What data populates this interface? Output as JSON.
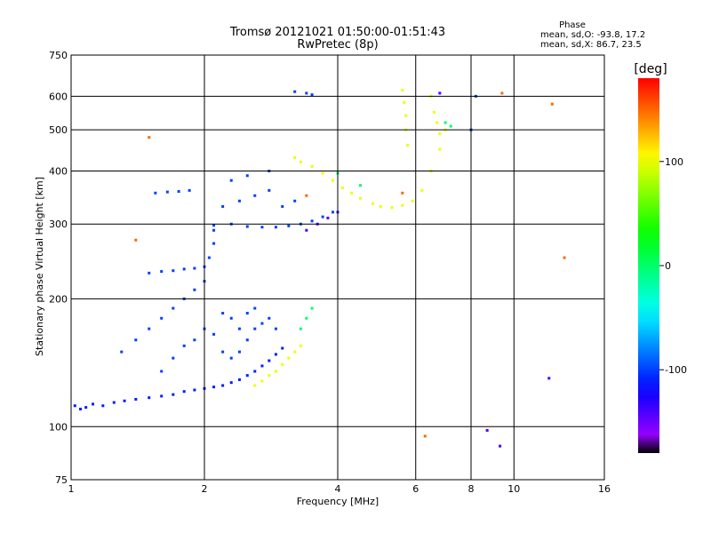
{
  "chart_data": {
    "type": "scatter",
    "title": "Tromsø 20121021 01:50:00-01:51:43",
    "subtitle": "RwPretec (8p)",
    "xlabel": "Frequency [MHz]",
    "ylabel": "Stationary phase Virtual Height [km]",
    "x_scale": "log",
    "y_scale": "log",
    "xlim": [
      1,
      16
    ],
    "ylim": [
      75,
      750
    ],
    "x_ticks": [
      1,
      2,
      4,
      6,
      8,
      10,
      16
    ],
    "y_ticks": [
      75,
      100,
      200,
      300,
      400,
      500,
      600,
      750
    ],
    "grid": true,
    "phase_box": {
      "heading": "Phase",
      "line_o": "mean, sd,O: -93.8, 17.2",
      "line_x": "mean, sd,X:  86.7, 23.5"
    },
    "colorbar": {
      "label": "[deg]",
      "min": -180,
      "max": 180,
      "ticks": [
        100,
        0,
        -100
      ]
    },
    "series": [
      {
        "points": [
          [
            1.02,
            112,
            -110
          ],
          [
            1.05,
            110,
            -110
          ],
          [
            1.08,
            111,
            -110
          ],
          [
            1.12,
            113,
            -110
          ],
          [
            1.18,
            112,
            -110
          ],
          [
            1.25,
            114,
            -110
          ],
          [
            1.32,
            115,
            -110
          ],
          [
            1.4,
            116,
            -110
          ],
          [
            1.5,
            117,
            -110
          ],
          [
            1.6,
            118,
            -110
          ],
          [
            1.7,
            119,
            -110
          ],
          [
            1.8,
            121,
            -110
          ],
          [
            1.9,
            122,
            -110
          ],
          [
            2.0,
            123,
            -110
          ],
          [
            2.1,
            124,
            -110
          ],
          [
            2.2,
            125,
            -110
          ],
          [
            2.3,
            127,
            -110
          ],
          [
            2.4,
            129,
            -110
          ],
          [
            2.5,
            132,
            -110
          ],
          [
            2.6,
            135,
            -110
          ],
          [
            2.7,
            139,
            -110
          ],
          [
            2.8,
            143,
            -110
          ],
          [
            2.9,
            148,
            -110
          ],
          [
            3.0,
            153,
            -110
          ],
          [
            1.5,
            230,
            -100
          ],
          [
            1.6,
            232,
            -100
          ],
          [
            1.7,
            233,
            -100
          ],
          [
            1.8,
            235,
            -100
          ],
          [
            1.9,
            236,
            -100
          ],
          [
            2.0,
            238,
            -100
          ],
          [
            1.55,
            355,
            -100
          ],
          [
            1.65,
            357,
            -100
          ],
          [
            1.75,
            358,
            -100
          ],
          [
            1.85,
            360,
            -100
          ],
          [
            1.3,
            150,
            -100
          ],
          [
            1.4,
            160,
            -100
          ],
          [
            1.5,
            170,
            -100
          ],
          [
            1.6,
            180,
            -100
          ],
          [
            1.7,
            190,
            -100
          ],
          [
            1.8,
            200,
            -100
          ],
          [
            1.9,
            210,
            -100
          ],
          [
            2.0,
            220,
            -100
          ],
          [
            2.05,
            250,
            -100
          ],
          [
            2.1,
            270,
            -100
          ],
          [
            2.1,
            290,
            -100
          ],
          [
            1.6,
            135,
            -100
          ],
          [
            1.7,
            145,
            -100
          ],
          [
            1.8,
            155,
            -100
          ],
          [
            1.9,
            160,
            -100
          ],
          [
            2.0,
            170,
            -100
          ],
          [
            2.1,
            165,
            -100
          ],
          [
            2.2,
            150,
            -100
          ],
          [
            2.3,
            145,
            -100
          ],
          [
            2.4,
            150,
            -100
          ],
          [
            2.5,
            160,
            -100
          ],
          [
            2.6,
            170,
            -100
          ],
          [
            2.7,
            175,
            -100
          ],
          [
            2.2,
            185,
            -100
          ],
          [
            2.3,
            180,
            -100
          ],
          [
            2.4,
            170,
            -100
          ],
          [
            2.5,
            185,
            -100
          ],
          [
            2.6,
            190,
            -100
          ],
          [
            2.8,
            180,
            -100
          ],
          [
            2.9,
            170,
            -100
          ],
          [
            2.1,
            298,
            -100
          ],
          [
            2.3,
            300,
            -100
          ],
          [
            2.5,
            296,
            -100
          ],
          [
            2.7,
            295,
            -100
          ],
          [
            2.9,
            295,
            -100
          ],
          [
            3.1,
            297,
            -100
          ],
          [
            3.3,
            300,
            -100
          ],
          [
            3.5,
            305,
            -100
          ],
          [
            3.7,
            312,
            -100
          ],
          [
            3.9,
            320,
            -100
          ],
          [
            2.2,
            330,
            -100
          ],
          [
            2.4,
            340,
            -100
          ],
          [
            2.6,
            350,
            -100
          ],
          [
            2.8,
            360,
            -100
          ],
          [
            3.0,
            330,
            -100
          ],
          [
            3.2,
            340,
            -100
          ],
          [
            2.3,
            380,
            -100
          ],
          [
            2.5,
            390,
            -100
          ],
          [
            2.8,
            400,
            -100
          ],
          [
            3.2,
            615,
            -100
          ],
          [
            3.4,
            610,
            -100
          ],
          [
            3.5,
            605,
            -100
          ],
          [
            8.0,
            500,
            -100
          ],
          [
            8.2,
            600,
            -100
          ]
        ]
      },
      {
        "points": [
          [
            2.6,
            125,
            100
          ],
          [
            2.7,
            128,
            100
          ],
          [
            2.8,
            132,
            100
          ],
          [
            2.9,
            135,
            100
          ],
          [
            3.0,
            140,
            100
          ],
          [
            3.1,
            145,
            100
          ],
          [
            3.2,
            150,
            100
          ],
          [
            3.3,
            155,
            100
          ],
          [
            3.2,
            430,
            100
          ],
          [
            3.3,
            420,
            100
          ],
          [
            3.5,
            410,
            100
          ],
          [
            3.7,
            395,
            100
          ],
          [
            3.9,
            380,
            100
          ],
          [
            4.1,
            365,
            100
          ],
          [
            4.3,
            355,
            100
          ],
          [
            4.5,
            345,
            100
          ],
          [
            4.8,
            335,
            100
          ],
          [
            5.0,
            330,
            100
          ],
          [
            5.3,
            328,
            100
          ],
          [
            5.6,
            332,
            100
          ],
          [
            5.9,
            340,
            100
          ],
          [
            6.2,
            360,
            100
          ],
          [
            6.5,
            400,
            100
          ],
          [
            6.8,
            450,
            100
          ],
          [
            7.0,
            500,
            100
          ],
          [
            5.6,
            620,
            100
          ],
          [
            5.65,
            580,
            100
          ],
          [
            5.7,
            540,
            100
          ],
          [
            5.7,
            500,
            100
          ],
          [
            5.75,
            460,
            100
          ],
          [
            6.5,
            600,
            100
          ],
          [
            6.6,
            550,
            100
          ],
          [
            6.7,
            520,
            100
          ],
          [
            6.8,
            490,
            100
          ]
        ]
      },
      {
        "points": [
          [
            3.3,
            170,
            0
          ],
          [
            3.4,
            180,
            0
          ],
          [
            3.5,
            190,
            0
          ],
          [
            4.0,
            395,
            0
          ],
          [
            4.5,
            370,
            0
          ],
          [
            7.0,
            520,
            0
          ],
          [
            7.2,
            510,
            0
          ]
        ]
      },
      {
        "points": [
          [
            1.4,
            275,
            150
          ],
          [
            1.5,
            480,
            150
          ],
          [
            3.4,
            350,
            150
          ],
          [
            5.6,
            355,
            150
          ],
          [
            6.3,
            95,
            150
          ],
          [
            9.4,
            610,
            150
          ],
          [
            12.2,
            575,
            150
          ],
          [
            13.0,
            250,
            150
          ]
        ]
      },
      {
        "points": [
          [
            3.4,
            290,
            -140
          ],
          [
            3.6,
            300,
            -140
          ],
          [
            3.8,
            310,
            -140
          ],
          [
            4.0,
            320,
            -140
          ],
          [
            6.8,
            610,
            -140
          ],
          [
            8.7,
            98,
            -140
          ],
          [
            9.3,
            90,
            -140
          ],
          [
            12.0,
            130,
            -140
          ]
        ]
      }
    ]
  }
}
